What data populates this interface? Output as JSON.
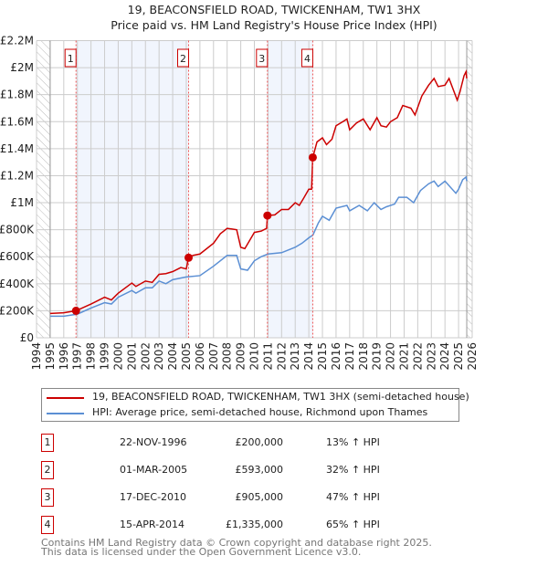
{
  "chart_data": {
    "type": "line",
    "title": "19, BEACONSFIELD ROAD, TWICKENHAM, TW1 3HX",
    "subtitle": "Price paid vs. HM Land Registry's House Price Index (HPI)",
    "xlim": [
      1994,
      2026
    ],
    "ylim": [
      0,
      2200000
    ],
    "x_ticks": [
      "1994",
      "1995",
      "1996",
      "1997",
      "1998",
      "1999",
      "2000",
      "2001",
      "2002",
      "2003",
      "2004",
      "2005",
      "2006",
      "2007",
      "2008",
      "2009",
      "2010",
      "2011",
      "2012",
      "2013",
      "2014",
      "2015",
      "2016",
      "2017",
      "2018",
      "2019",
      "2020",
      "2021",
      "2022",
      "2023",
      "2024",
      "2025",
      "2026"
    ],
    "y_ticks": [
      {
        "v": 0,
        "label": "£0"
      },
      {
        "v": 200000,
        "label": "£200K"
      },
      {
        "v": 400000,
        "label": "£400K"
      },
      {
        "v": 600000,
        "label": "£600K"
      },
      {
        "v": 800000,
        "label": "£800K"
      },
      {
        "v": 1000000,
        "label": "£1M"
      },
      {
        "v": 1200000,
        "label": "£1.2M"
      },
      {
        "v": 1400000,
        "label": "£1.4M"
      },
      {
        "v": 1600000,
        "label": "£1.6M"
      },
      {
        "v": 1800000,
        "label": "£1.8M"
      },
      {
        "v": 2000000,
        "label": "£2M"
      },
      {
        "v": 2200000,
        "label": "£2.2M"
      }
    ],
    "grid": true,
    "hatched_ranges": [
      [
        1994,
        1995
      ],
      [
        2025.6,
        2026
      ]
    ],
    "shaded_ranges": [
      [
        1996.9,
        2005.17
      ],
      [
        2010.96,
        2014.29
      ]
    ],
    "series": [
      {
        "name": "19, BEACONSFIELD ROAD, TWICKENHAM, TW1 3HX (semi-detached house)",
        "color": "#cc0000",
        "points": [
          [
            1995,
            180000
          ],
          [
            1996,
            185000
          ],
          [
            1996.9,
            200000
          ],
          [
            1998,
            250000
          ],
          [
            1999,
            300000
          ],
          [
            1999.5,
            280000
          ],
          [
            2000,
            330000
          ],
          [
            2001,
            405000
          ],
          [
            2001.3,
            380000
          ],
          [
            2002,
            420000
          ],
          [
            2002.5,
            410000
          ],
          [
            2003,
            470000
          ],
          [
            2003.5,
            475000
          ],
          [
            2004,
            490000
          ],
          [
            2004.6,
            520000
          ],
          [
            2005.0,
            510000
          ],
          [
            2005.17,
            593000
          ],
          [
            2005.5,
            610000
          ],
          [
            2006,
            620000
          ],
          [
            2007,
            700000
          ],
          [
            2007.5,
            770000
          ],
          [
            2008,
            810000
          ],
          [
            2008.7,
            800000
          ],
          [
            2009,
            670000
          ],
          [
            2009.3,
            660000
          ],
          [
            2010,
            780000
          ],
          [
            2010.5,
            790000
          ],
          [
            2010.9,
            810000
          ],
          [
            2010.96,
            905000
          ],
          [
            2011.5,
            910000
          ],
          [
            2012,
            950000
          ],
          [
            2012.5,
            950000
          ],
          [
            2013,
            1000000
          ],
          [
            2013.3,
            980000
          ],
          [
            2013.6,
            1030000
          ],
          [
            2014,
            1100000
          ],
          [
            2014.2,
            1100000
          ],
          [
            2014.29,
            1335000
          ],
          [
            2014.6,
            1450000
          ],
          [
            2015,
            1480000
          ],
          [
            2015.3,
            1430000
          ],
          [
            2015.7,
            1470000
          ],
          [
            2016,
            1570000
          ],
          [
            2016.5,
            1600000
          ],
          [
            2016.8,
            1620000
          ],
          [
            2017,
            1540000
          ],
          [
            2017.5,
            1590000
          ],
          [
            2018,
            1620000
          ],
          [
            2018.5,
            1540000
          ],
          [
            2019,
            1630000
          ],
          [
            2019.3,
            1570000
          ],
          [
            2019.7,
            1560000
          ],
          [
            2020,
            1600000
          ],
          [
            2020.5,
            1630000
          ],
          [
            2020.9,
            1720000
          ],
          [
            2021.5,
            1700000
          ],
          [
            2021.8,
            1650000
          ],
          [
            2022.3,
            1790000
          ],
          [
            2022.8,
            1870000
          ],
          [
            2023.2,
            1920000
          ],
          [
            2023.5,
            1860000
          ],
          [
            2024,
            1870000
          ],
          [
            2024.3,
            1920000
          ],
          [
            2024.9,
            1760000
          ],
          [
            2025.1,
            1820000
          ],
          [
            2025.4,
            1940000
          ],
          [
            2025.55,
            1970000
          ],
          [
            2025.6,
            1920000
          ]
        ]
      },
      {
        "name": "HPI: Average price, semi-detached house, Richmond upon Thames",
        "color": "#5b8fd4",
        "points": [
          [
            1995,
            160000
          ],
          [
            1996,
            160000
          ],
          [
            1997,
            175000
          ],
          [
            1998,
            220000
          ],
          [
            1999,
            260000
          ],
          [
            1999.5,
            250000
          ],
          [
            2000,
            300000
          ],
          [
            2001,
            350000
          ],
          [
            2001.3,
            330000
          ],
          [
            2002,
            370000
          ],
          [
            2002.5,
            370000
          ],
          [
            2003,
            420000
          ],
          [
            2003.5,
            400000
          ],
          [
            2004,
            430000
          ],
          [
            2005,
            450000
          ],
          [
            2006,
            460000
          ],
          [
            2007,
            530000
          ],
          [
            2008,
            610000
          ],
          [
            2008.7,
            610000
          ],
          [
            2009,
            510000
          ],
          [
            2009.5,
            500000
          ],
          [
            2010,
            570000
          ],
          [
            2010.5,
            600000
          ],
          [
            2011,
            620000
          ],
          [
            2012,
            630000
          ],
          [
            2012.5,
            650000
          ],
          [
            2013,
            670000
          ],
          [
            2013.5,
            700000
          ],
          [
            2014,
            740000
          ],
          [
            2014.3,
            760000
          ],
          [
            2014.7,
            850000
          ],
          [
            2015,
            900000
          ],
          [
            2015.5,
            870000
          ],
          [
            2016,
            960000
          ],
          [
            2016.8,
            980000
          ],
          [
            2017,
            940000
          ],
          [
            2017.7,
            980000
          ],
          [
            2018.3,
            940000
          ],
          [
            2018.8,
            1000000
          ],
          [
            2019.3,
            950000
          ],
          [
            2019.7,
            970000
          ],
          [
            2020.3,
            990000
          ],
          [
            2020.6,
            1040000
          ],
          [
            2021.2,
            1040000
          ],
          [
            2021.7,
            1000000
          ],
          [
            2022.2,
            1090000
          ],
          [
            2022.8,
            1140000
          ],
          [
            2023.2,
            1160000
          ],
          [
            2023.5,
            1120000
          ],
          [
            2024,
            1160000
          ],
          [
            2024.8,
            1070000
          ],
          [
            2025,
            1100000
          ],
          [
            2025.3,
            1170000
          ],
          [
            2025.55,
            1190000
          ],
          [
            2025.6,
            1160000
          ]
        ]
      }
    ],
    "sales": [
      {
        "n": "1",
        "x": 1996.9,
        "date": "22-NOV-1996",
        "price_value": 200000,
        "price": "£200,000",
        "hpi": "13% ↑ HPI"
      },
      {
        "n": "2",
        "x": 2005.17,
        "date": "01-MAR-2005",
        "price_value": 593000,
        "price": "£593,000",
        "hpi": "32% ↑ HPI"
      },
      {
        "n": "3",
        "x": 2010.96,
        "date": "17-DEC-2010",
        "price_value": 905000,
        "price": "£905,000",
        "hpi": "47% ↑ HPI"
      },
      {
        "n": "4",
        "x": 2014.29,
        "date": "15-APR-2014",
        "price_value": 1335000,
        "price": "£1,335,000",
        "hpi": "65% ↑ HPI"
      }
    ],
    "legend_position": "below"
  },
  "footer": {
    "line1": "Contains HM Land Registry data © Crown copyright and database right 2025.",
    "line2": "This data is licensed under the Open Government Licence v3.0."
  }
}
